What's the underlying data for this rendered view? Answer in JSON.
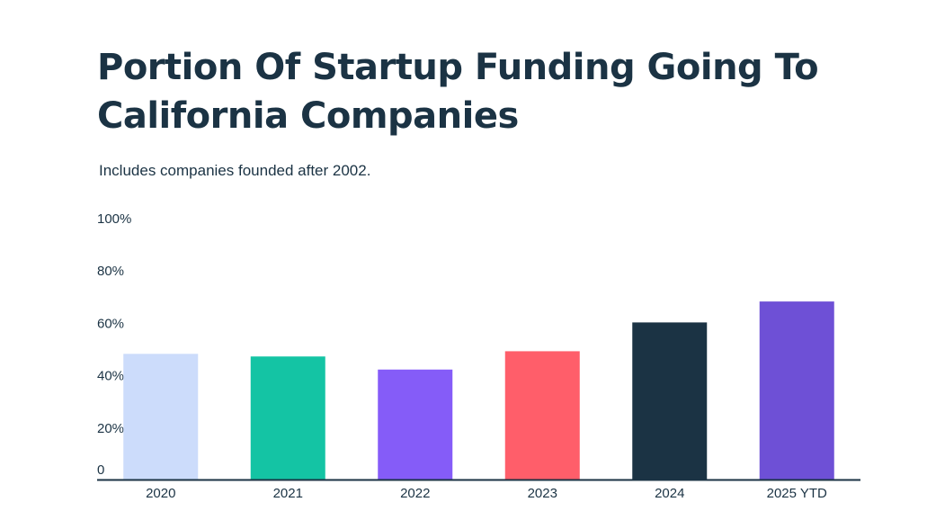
{
  "chart_data": {
    "type": "bar",
    "title": "Portion Of Startup Funding Going To California Companies",
    "subtitle": "Includes companies founded after 2002.",
    "xlabel": "",
    "ylabel": "",
    "categories": [
      "2020",
      "2021",
      "2022",
      "2023",
      "2024",
      "2025 YTD"
    ],
    "values": [
      48,
      47,
      42,
      49,
      60,
      68
    ],
    "colors": [
      "#ccdcfb",
      "#14c4a4",
      "#855cf8",
      "#ff5e6a",
      "#1b3344",
      "#6e50d6"
    ],
    "ylim": [
      0,
      100
    ],
    "yticks": [
      {
        "value": 0,
        "label": "0"
      },
      {
        "value": 20,
        "label": "20%"
      },
      {
        "value": 40,
        "label": "40%"
      },
      {
        "value": 60,
        "label": "60%"
      },
      {
        "value": 80,
        "label": "80%"
      },
      {
        "value": 100,
        "label": "100%"
      }
    ],
    "grid": false,
    "legend": "none"
  },
  "colors": {
    "text": "#1b3344",
    "axis": "#1b3344"
  }
}
